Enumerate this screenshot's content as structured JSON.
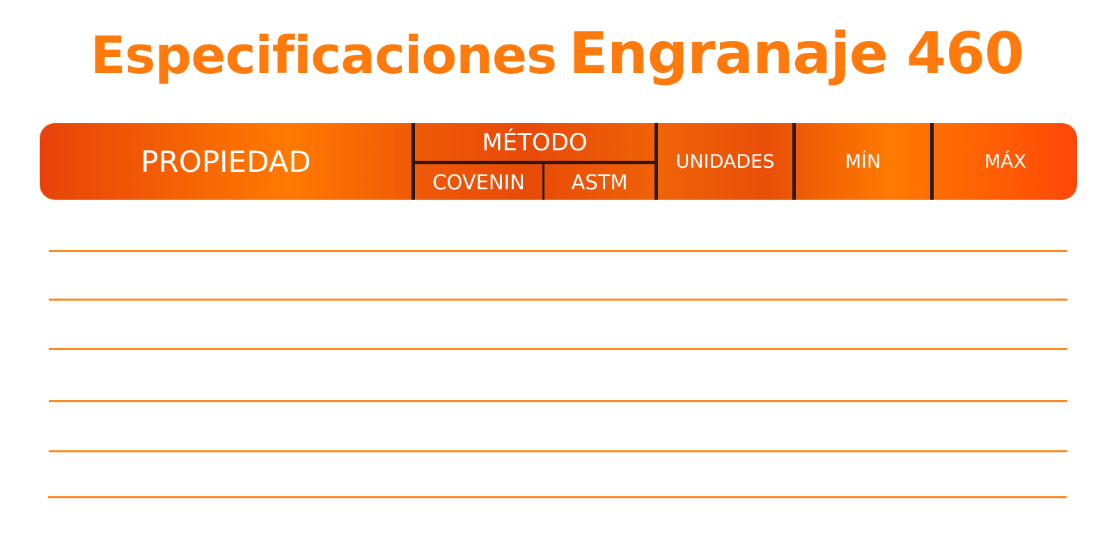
{
  "title": {
    "part1": "Especificaciones",
    "part2": "Engranaje 460"
  },
  "header": {
    "property": "PROPIEDAD",
    "method": "MÉTODO",
    "method_sub": [
      "COVENIN",
      "ASTM"
    ],
    "units": "UNIDADES",
    "min": "MÍN",
    "max": "MÁX"
  },
  "colors": {
    "title": "#ff7a0c",
    "header_gradient_start": "#e8420a",
    "header_gradient_mid": "#ff7a00",
    "header_gradient_end": "#ff4808",
    "divider": "#2a1a12",
    "row_rule": "#ff8a1e"
  },
  "rows": [
    {},
    {},
    {},
    {},
    {},
    {}
  ]
}
